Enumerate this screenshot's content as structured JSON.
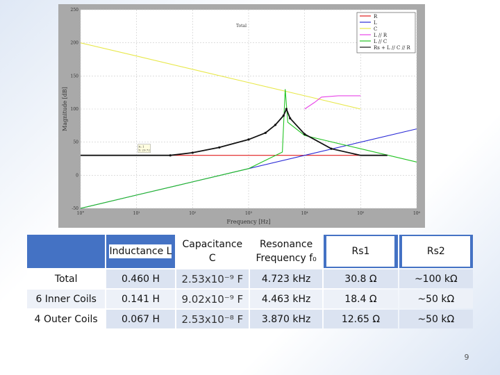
{
  "plot": {
    "inner_title": "Total",
    "xlabel": "Frequency [Hz]",
    "ylabel": "Magnitude [dB]",
    "x_ticks": [
      "10°",
      "10¹",
      "10²",
      "10³",
      "10⁴",
      "10⁵",
      "10⁶"
    ],
    "y_ticks": [
      "250",
      "200",
      "150",
      "100",
      "50",
      "0",
      "-50"
    ],
    "legend": [
      "R",
      "L",
      "C",
      "L // R",
      "L // C",
      "Rs + L // C // R"
    ],
    "annotation": [
      "X: 1",
      "Y: 29.72"
    ],
    "colors": {
      "R": "#e01b1b",
      "L": "#2b2bd6",
      "C": "#e8e84a",
      "L_par_R": "#e844e8",
      "L_par_C": "#22c322",
      "total": "#111111"
    }
  },
  "chart_data": {
    "type": "line",
    "title": "Total",
    "xlabel": "Frequency [Hz]",
    "ylabel": "Magnitude [dB]",
    "xscale": "log",
    "xlim": [
      1,
      1000000
    ],
    "ylim": [
      -50,
      250
    ],
    "grid": true,
    "legend_position": "top-right",
    "series": [
      {
        "name": "R",
        "x": [
          1,
          100000
        ],
        "y": [
          30,
          30
        ]
      },
      {
        "name": "L",
        "x": [
          1,
          10,
          100,
          1000,
          10000,
          100000,
          1000000
        ],
        "y": [
          -50,
          -30,
          -10,
          10,
          30,
          50,
          70
        ]
      },
      {
        "name": "C",
        "x": [
          1,
          10,
          100,
          1000,
          10000,
          100000
        ],
        "y": [
          200,
          180,
          160,
          140,
          120,
          100
        ]
      },
      {
        "name": "L // R",
        "x": [
          10000,
          15000,
          20000,
          40000,
          100000
        ],
        "y": [
          100,
          110,
          118,
          120,
          120
        ]
      },
      {
        "name": "L // C",
        "x": [
          1,
          10,
          100,
          1000,
          4000,
          4500,
          5000,
          10000,
          100000,
          1000000
        ],
        "y": [
          -50,
          -30,
          -10,
          10,
          35,
          130,
          80,
          60,
          40,
          20
        ]
      },
      {
        "name": "Rs + L // C // R",
        "x": [
          1,
          10,
          40,
          100,
          300,
          1000,
          2000,
          3000,
          4200,
          4723,
          5500,
          10000,
          30000,
          100000,
          300000
        ],
        "y": [
          30,
          30,
          30,
          34,
          42,
          54,
          64,
          76,
          90,
          100,
          86,
          62,
          40,
          30,
          30
        ]
      }
    ]
  },
  "table": {
    "headers": [
      "",
      "Inductance L",
      "Capacitance C",
      "Resonance Frequency f₀",
      "Rs1",
      "Rs2"
    ],
    "rows": [
      {
        "label": "Total",
        "L": "0.460 H",
        "C": "2.53x10⁻⁹ F",
        "f0": "4.723 kHz",
        "rs1": "30.8 Ω",
        "rs2": "~100 kΩ"
      },
      {
        "label": "6 Inner Coils",
        "L": "0.141 H",
        "C": "9.02x10⁻⁹ F",
        "f0": "4.463 kHz",
        "rs1": "18.4 Ω",
        "rs2": "~50 kΩ"
      },
      {
        "label": "4 Outer Coils",
        "L": "0.067 H",
        "C": "2.53x10⁻⁸ F",
        "f0": "3.870 kHz",
        "rs1": "12.65 Ω",
        "rs2": "~50 kΩ"
      }
    ]
  },
  "page_number": "9"
}
